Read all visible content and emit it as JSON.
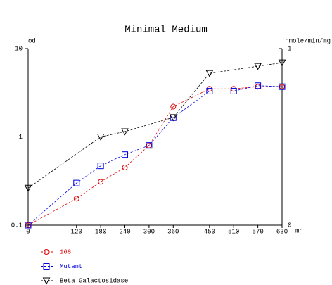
{
  "chart_data": {
    "type": "line",
    "title": "Minimal Medium",
    "ylabel": "od",
    "y2label": "nmole/min/mg",
    "xlabel": "mn",
    "x": [
      0,
      120,
      180,
      240,
      300,
      360,
      450,
      510,
      570,
      630
    ],
    "xlim": [
      0,
      630
    ],
    "xticks": [
      0,
      120,
      180,
      240,
      300,
      360,
      450,
      510,
      570,
      630
    ],
    "ylim": [
      0.1,
      10
    ],
    "yticks": [
      0.1,
      1,
      10
    ],
    "log_y": true,
    "y2lim": [
      0,
      1
    ],
    "y2ticks": [
      0,
      1
    ],
    "series": [
      {
        "name": "168",
        "color": "#e00000",
        "marker": "circle",
        "values": [
          0.1,
          0.2,
          0.31,
          0.45,
          0.8,
          2.2,
          3.5,
          3.5,
          3.7,
          3.7
        ]
      },
      {
        "name": "Mutant",
        "color": "#0000e0",
        "marker": "square",
        "values": [
          0.1,
          0.3,
          0.47,
          0.63,
          0.8,
          1.65,
          3.3,
          3.3,
          3.8,
          3.7
        ]
      },
      {
        "name": "Beta Galactosidase",
        "color": "#000000",
        "marker": "triangle",
        "axis": "y2",
        "x": [
          0,
          180,
          240,
          360,
          450,
          570,
          630
        ],
        "values": [
          0.21,
          0.5,
          0.53,
          0.61,
          0.86,
          0.9,
          0.92
        ]
      }
    ]
  }
}
